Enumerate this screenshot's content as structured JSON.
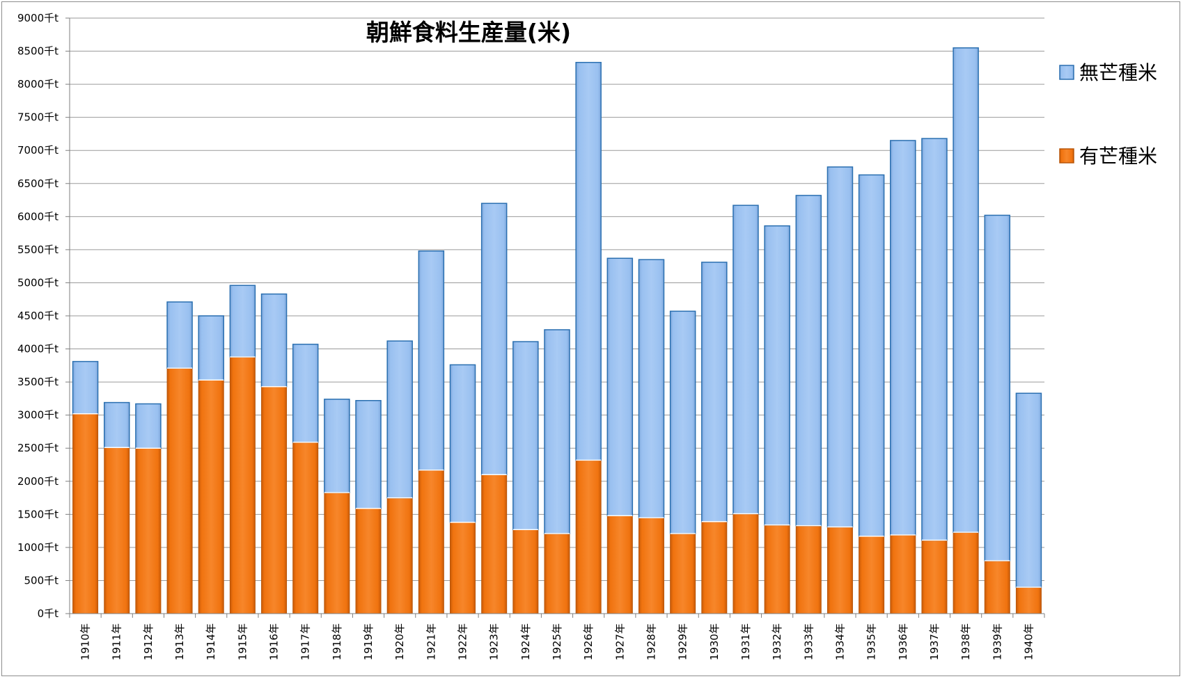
{
  "chart_data": {
    "type": "bar",
    "stacked": true,
    "title": "朝鮮食料生産量(米)",
    "xlabel": "",
    "ylabel": "",
    "ylim": [
      0,
      9000
    ],
    "ytick_step": 500,
    "y_unit": "千t",
    "grid": true,
    "legend_position": "right",
    "categories": [
      "1910年",
      "1911年",
      "1912年",
      "1913年",
      "1914年",
      "1915年",
      "1916年",
      "1917年",
      "1918年",
      "1919年",
      "1920年",
      "1921年",
      "1922年",
      "1923年",
      "1924年",
      "1925年",
      "1926年",
      "1927年",
      "1928年",
      "1929年",
      "1930年",
      "1931年",
      "1932年",
      "1933年",
      "1934年",
      "1935年",
      "1936年",
      "1937年",
      "1938年",
      "1939年",
      "1940年"
    ],
    "series": [
      {
        "name": "有芒種米",
        "color": "#f0730f",
        "values": [
          3020,
          2510,
          2500,
          3710,
          3530,
          3880,
          3430,
          2590,
          1830,
          1590,
          1750,
          2170,
          1380,
          2100,
          1270,
          1210,
          2320,
          1480,
          1450,
          1210,
          1390,
          1510,
          1340,
          1330,
          1310,
          1170,
          1190,
          1110,
          1230,
          800,
          400
        ]
      },
      {
        "name": "無芒種米",
        "color": "#99c0f0",
        "values": [
          790,
          680,
          670,
          1000,
          970,
          1080,
          1400,
          1480,
          1410,
          1630,
          2370,
          3310,
          2380,
          4100,
          2840,
          3080,
          6010,
          3890,
          3900,
          3360,
          3920,
          4660,
          4520,
          4990,
          5440,
          5460,
          5960,
          6070,
          7320,
          5220,
          2930
        ]
      }
    ],
    "legend": [
      "無芒種米",
      "有芒種米"
    ]
  }
}
